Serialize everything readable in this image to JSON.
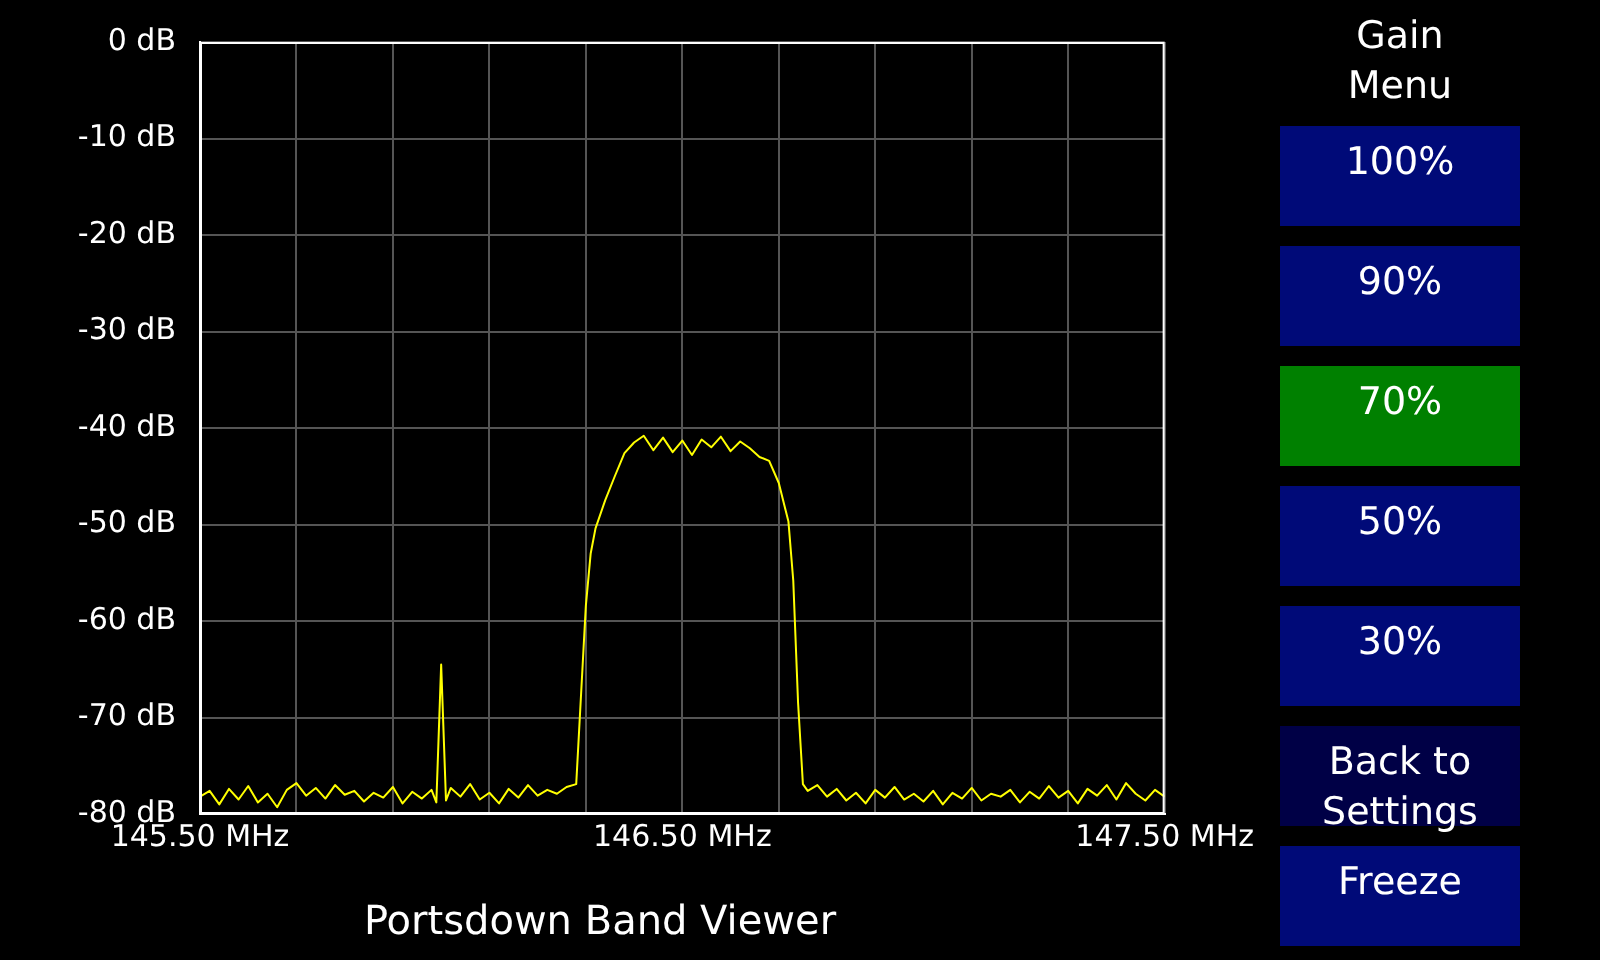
{
  "chart_data": {
    "type": "line",
    "title": "Portsdown Band Viewer",
    "x": [
      145.5,
      145.52,
      145.54,
      145.56,
      145.58,
      145.6,
      145.62,
      145.64,
      145.66,
      145.68,
      145.7,
      145.72,
      145.74,
      145.76,
      145.78,
      145.8,
      145.82,
      145.84,
      145.86,
      145.88,
      145.9,
      145.92,
      145.94,
      145.96,
      145.98,
      145.99,
      146.0,
      146.01,
      146.02,
      146.04,
      146.06,
      146.08,
      146.1,
      146.12,
      146.14,
      146.16,
      146.18,
      146.2,
      146.22,
      146.24,
      146.26,
      146.28,
      146.3,
      146.31,
      146.32,
      146.34,
      146.36,
      146.38,
      146.4,
      146.42,
      146.44,
      146.46,
      146.48,
      146.5,
      146.52,
      146.54,
      146.56,
      146.58,
      146.6,
      146.62,
      146.64,
      146.66,
      146.68,
      146.7,
      146.72,
      146.73,
      146.74,
      146.75,
      146.76,
      146.78,
      146.8,
      146.82,
      146.84,
      146.86,
      146.88,
      146.9,
      146.92,
      146.94,
      146.96,
      146.98,
      147.0,
      147.02,
      147.04,
      147.06,
      147.08,
      147.1,
      147.12,
      147.14,
      147.16,
      147.18,
      147.2,
      147.22,
      147.24,
      147.26,
      147.28,
      147.3,
      147.32,
      147.34,
      147.36,
      147.38,
      147.4,
      147.42,
      147.44,
      147.46,
      147.48,
      147.5
    ],
    "series": [
      {
        "color": "#ffff00",
        "values": [
          -78.2,
          -77.6,
          -79.0,
          -77.4,
          -78.5,
          -77.1,
          -78.8,
          -77.9,
          -79.3,
          -77.5,
          -76.8,
          -78.1,
          -77.3,
          -78.4,
          -77.0,
          -78.0,
          -77.6,
          -78.7,
          -77.8,
          -78.3,
          -77.2,
          -78.9,
          -77.7,
          -78.4,
          -77.5,
          -78.8,
          -64.5,
          -78.6,
          -77.3,
          -78.2,
          -76.9,
          -78.5,
          -77.8,
          -78.9,
          -77.4,
          -78.3,
          -77.0,
          -78.1,
          -77.5,
          -77.9,
          -77.2,
          -76.9,
          -58.4,
          -53.0,
          -50.4,
          -47.5,
          -45.0,
          -42.6,
          -41.5,
          -40.8,
          -42.3,
          -41.0,
          -42.5,
          -41.3,
          -42.8,
          -41.2,
          -42.0,
          -40.9,
          -42.4,
          -41.4,
          -42.1,
          -43.0,
          -43.4,
          -45.7,
          -49.7,
          -55.8,
          -68.5,
          -76.9,
          -77.6,
          -77.0,
          -78.2,
          -77.4,
          -78.6,
          -77.8,
          -78.9,
          -77.5,
          -78.3,
          -77.2,
          -78.5,
          -77.9,
          -78.7,
          -77.6,
          -79.0,
          -77.8,
          -78.4,
          -77.3,
          -78.6,
          -77.9,
          -78.2,
          -77.5,
          -78.8,
          -77.7,
          -78.4,
          -77.1,
          -78.3,
          -77.6,
          -78.9,
          -77.4,
          -78.1,
          -77.0,
          -78.5,
          -76.8,
          -77.9,
          -78.6,
          -77.5,
          -78.2
        ]
      }
    ],
    "xlim": [
      145.5,
      147.5
    ],
    "xticks": [
      {
        "value": 145.5,
        "label": "145.50 MHz"
      },
      {
        "value": 145.7,
        "label": null
      },
      {
        "value": 145.9,
        "label": null
      },
      {
        "value": 146.1,
        "label": null
      },
      {
        "value": 146.3,
        "label": null
      },
      {
        "value": 146.5,
        "label": "146.50 MHz"
      },
      {
        "value": 146.7,
        "label": null
      },
      {
        "value": 146.9,
        "label": null
      },
      {
        "value": 147.1,
        "label": null
      },
      {
        "value": 147.3,
        "label": null
      },
      {
        "value": 147.5,
        "label": "147.50 MHz"
      }
    ],
    "ylim": [
      -80,
      0
    ],
    "yticks": [
      {
        "value": 0,
        "label": "0 dB"
      },
      {
        "value": -10,
        "label": "-10 dB"
      },
      {
        "value": -20,
        "label": "-20 dB"
      },
      {
        "value": -30,
        "label": "-30 dB"
      },
      {
        "value": -40,
        "label": "-40 dB"
      },
      {
        "value": -50,
        "label": "-50 dB"
      },
      {
        "value": -60,
        "label": "-60 dB"
      },
      {
        "value": -70,
        "label": "-70 dB"
      },
      {
        "value": -80,
        "label": "-80 dB"
      }
    ],
    "grid": true,
    "marker": "none",
    "line_style": "solid",
    "annotations": [
      "Gain Menu",
      "100%",
      "90%",
      "70%",
      "50%",
      "30%",
      "Back to Settings",
      "Freeze"
    ]
  }
}
